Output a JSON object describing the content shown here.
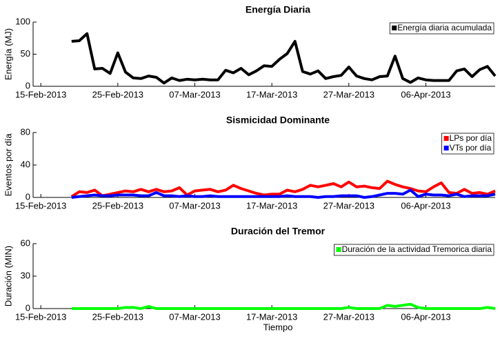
{
  "chart_data": [
    {
      "type": "line",
      "title": "Energía Diaria",
      "y_label": "Energía (MJ)",
      "x": [
        "2013-02-19",
        "2013-02-20",
        "2013-02-21",
        "2013-02-22",
        "2013-02-23",
        "2013-02-24",
        "2013-02-25",
        "2013-02-26",
        "2013-02-27",
        "2013-02-28",
        "2013-03-01",
        "2013-03-02",
        "2013-03-03",
        "2013-03-04",
        "2013-03-05",
        "2013-03-06",
        "2013-03-07",
        "2013-03-08",
        "2013-03-09",
        "2013-03-10",
        "2013-03-11",
        "2013-03-12",
        "2013-03-13",
        "2013-03-14",
        "2013-03-15",
        "2013-03-16",
        "2013-03-17",
        "2013-03-18",
        "2013-03-19",
        "2013-03-20",
        "2013-03-21",
        "2013-03-22",
        "2013-03-23",
        "2013-03-24",
        "2013-03-25",
        "2013-03-26",
        "2013-03-27",
        "2013-03-28",
        "2013-03-29",
        "2013-03-30",
        "2013-03-31",
        "2013-04-01",
        "2013-04-02",
        "2013-04-03",
        "2013-04-04",
        "2013-04-05",
        "2013-04-06",
        "2013-04-07",
        "2013-04-08",
        "2013-04-09",
        "2013-04-10",
        "2013-04-11",
        "2013-04-12",
        "2013-04-13",
        "2013-04-14",
        "2013-04-15"
      ],
      "series": [
        {
          "name": "Energía diaria acumulada",
          "color": "#000000",
          "values": [
            70,
            71,
            82,
            27,
            28,
            20,
            52,
            22,
            13,
            12,
            16,
            14,
            5,
            13,
            9,
            11,
            10,
            11,
            10,
            10,
            25,
            21,
            28,
            18,
            24,
            32,
            31,
            42,
            51,
            70,
            23,
            19,
            24,
            12,
            15,
            17,
            30,
            16,
            12,
            10,
            15,
            16,
            47,
            12,
            6,
            13,
            10,
            9,
            9,
            9,
            24,
            27,
            15,
            26,
            31,
            16
          ]
        }
      ],
      "xlim": [
        "2013-02-14",
        "2013-04-15"
      ],
      "xticks": [
        {
          "value": "2013-02-15",
          "label": "15-Feb-2013"
        },
        {
          "value": "2013-02-25",
          "label": "25-Feb-2013"
        },
        {
          "value": "2013-03-07",
          "label": "07-Mar-2013"
        },
        {
          "value": "2013-03-17",
          "label": "17-Mar-2013"
        },
        {
          "value": "2013-03-27",
          "label": "27-Mar-2013"
        },
        {
          "value": "2013-04-06",
          "label": "06-Apr-2013"
        }
      ],
      "ylim": [
        0,
        100
      ],
      "yticks": [
        0,
        50,
        100
      ],
      "legend": "upper right"
    },
    {
      "type": "line",
      "title": "Sismicidad Dominante",
      "y_label": "Eventos por día",
      "x": [
        "2013-02-19",
        "2013-02-20",
        "2013-02-21",
        "2013-02-22",
        "2013-02-23",
        "2013-02-24",
        "2013-02-25",
        "2013-02-26",
        "2013-02-27",
        "2013-02-28",
        "2013-03-01",
        "2013-03-02",
        "2013-03-03",
        "2013-03-04",
        "2013-03-05",
        "2013-03-06",
        "2013-03-07",
        "2013-03-08",
        "2013-03-09",
        "2013-03-10",
        "2013-03-11",
        "2013-03-12",
        "2013-03-13",
        "2013-03-14",
        "2013-03-15",
        "2013-03-16",
        "2013-03-17",
        "2013-03-18",
        "2013-03-19",
        "2013-03-20",
        "2013-03-21",
        "2013-03-22",
        "2013-03-23",
        "2013-03-24",
        "2013-03-25",
        "2013-03-26",
        "2013-03-27",
        "2013-03-28",
        "2013-03-29",
        "2013-03-30",
        "2013-03-31",
        "2013-04-01",
        "2013-04-02",
        "2013-04-03",
        "2013-04-04",
        "2013-04-05",
        "2013-04-06",
        "2013-04-07",
        "2013-04-08",
        "2013-04-09",
        "2013-04-10",
        "2013-04-11",
        "2013-04-12",
        "2013-04-13",
        "2013-04-14",
        "2013-04-15"
      ],
      "series": [
        {
          "name": "LPs por día",
          "color": "#ff0000",
          "values": [
            1,
            7,
            6,
            9,
            2,
            4,
            6,
            8,
            7,
            10,
            7,
            10,
            7,
            8,
            12,
            3,
            8,
            9,
            10,
            7,
            9,
            15,
            11,
            8,
            5,
            3,
            4,
            4,
            9,
            7,
            10,
            15,
            13,
            15,
            17,
            13,
            19,
            13,
            14,
            12,
            11,
            20,
            16,
            13,
            11,
            8,
            7,
            13,
            18,
            6,
            5,
            10,
            5,
            6,
            4,
            8
          ]
        },
        {
          "name": "VTs por día",
          "color": "#0000ff",
          "values": [
            0,
            1,
            2,
            3,
            2,
            2,
            3,
            3,
            3,
            2,
            2,
            6,
            2,
            2,
            1,
            2,
            1,
            1,
            2,
            1,
            1,
            1,
            1,
            1,
            1,
            1,
            1,
            1,
            2,
            1,
            1,
            1,
            0,
            1,
            1,
            2,
            2,
            2,
            0,
            1,
            3,
            5,
            5,
            4,
            9,
            1,
            4,
            3,
            3,
            2,
            4,
            1,
            2,
            2,
            2,
            4
          ]
        }
      ],
      "xlim": [
        "2013-02-14",
        "2013-04-15"
      ],
      "xticks": [
        {
          "value": "2013-02-15",
          "label": "15-Feb-2013"
        },
        {
          "value": "2013-02-25",
          "label": "25-Feb-2013"
        },
        {
          "value": "2013-03-07",
          "label": "07-Mar-2013"
        },
        {
          "value": "2013-03-17",
          "label": "17-Mar-2013"
        },
        {
          "value": "2013-03-27",
          "label": "27-Mar-2013"
        },
        {
          "value": "2013-04-06",
          "label": "06-Apr-2013"
        }
      ],
      "ylim": [
        0,
        80
      ],
      "yticks": [
        0,
        40,
        80
      ],
      "legend": "upper right"
    },
    {
      "type": "line",
      "title": "Duración del Tremor",
      "y_label": "Duración (MIN)",
      "x_label": "Tiempo",
      "x": [
        "2013-02-19",
        "2013-02-20",
        "2013-02-21",
        "2013-02-22",
        "2013-02-23",
        "2013-02-24",
        "2013-02-25",
        "2013-02-26",
        "2013-02-27",
        "2013-02-28",
        "2013-03-01",
        "2013-03-02",
        "2013-03-03",
        "2013-03-04",
        "2013-03-05",
        "2013-03-06",
        "2013-03-07",
        "2013-03-08",
        "2013-03-09",
        "2013-03-10",
        "2013-03-11",
        "2013-03-12",
        "2013-03-13",
        "2013-03-14",
        "2013-03-15",
        "2013-03-16",
        "2013-03-17",
        "2013-03-18",
        "2013-03-19",
        "2013-03-20",
        "2013-03-21",
        "2013-03-22",
        "2013-03-23",
        "2013-03-24",
        "2013-03-25",
        "2013-03-26",
        "2013-03-27",
        "2013-03-28",
        "2013-03-29",
        "2013-03-30",
        "2013-03-31",
        "2013-04-01",
        "2013-04-02",
        "2013-04-03",
        "2013-04-04",
        "2013-04-05",
        "2013-04-06",
        "2013-04-07",
        "2013-04-08",
        "2013-04-09",
        "2013-04-10",
        "2013-04-11",
        "2013-04-12",
        "2013-04-13",
        "2013-04-14",
        "2013-04-15"
      ],
      "series": [
        {
          "name": "Duración de la actividad Tremorica diaria",
          "color": "#00ff00",
          "values": [
            0,
            0,
            0,
            0,
            0,
            0,
            0,
            1,
            1,
            0,
            2,
            0,
            0,
            0,
            0,
            0,
            0,
            0,
            0,
            0,
            0,
            0,
            0,
            0,
            0,
            0,
            0,
            0,
            0,
            0,
            0,
            0,
            0,
            0,
            0,
            0,
            1,
            0,
            0,
            0,
            0,
            3,
            2,
            3,
            4,
            1,
            0,
            0,
            0,
            0,
            0,
            0,
            0,
            0,
            1,
            0
          ]
        }
      ],
      "xlim": [
        "2013-02-14",
        "2013-04-15"
      ],
      "xticks": [
        {
          "value": "2013-02-15",
          "label": "15-Feb-2013"
        },
        {
          "value": "2013-02-25",
          "label": "25-Feb-2013"
        },
        {
          "value": "2013-03-07",
          "label": "07-Mar-2013"
        },
        {
          "value": "2013-03-17",
          "label": "17-Mar-2013"
        },
        {
          "value": "2013-03-27",
          "label": "27-Mar-2013"
        },
        {
          "value": "2013-04-06",
          "label": "06-Apr-2013"
        }
      ],
      "ylim": [
        0,
        60
      ],
      "yticks": [
        0,
        30,
        60
      ],
      "legend": "upper right"
    }
  ]
}
